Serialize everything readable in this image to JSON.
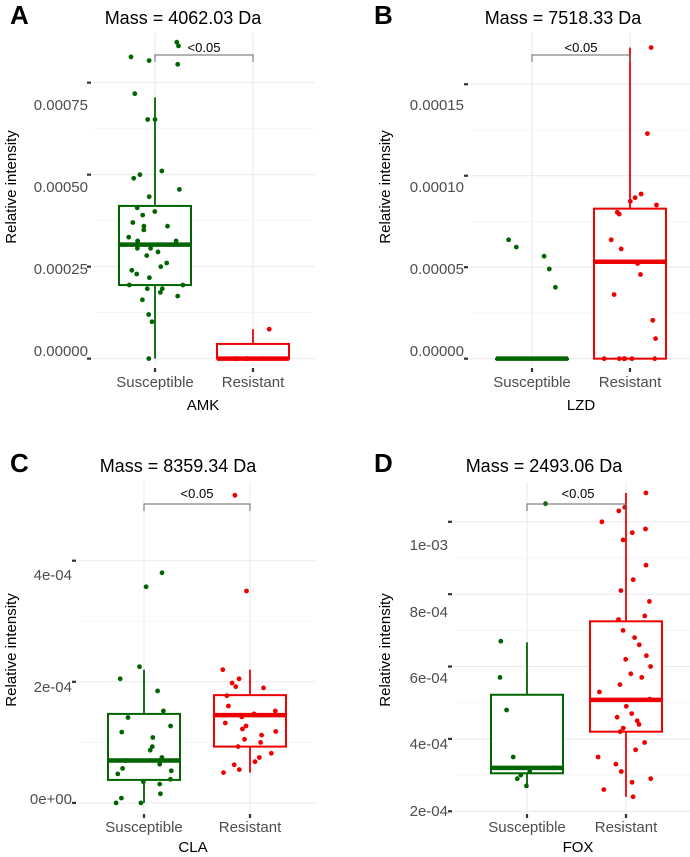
{
  "figure": {
    "ylabel": "Relative intensity"
  },
  "colors": {
    "susceptible": "#006400",
    "resistant": "#ee0000",
    "grid": "#ebebeb",
    "bracket": "#666666"
  },
  "chart_data": [
    {
      "type": "box",
      "panel": "A",
      "title": "Mass = 4062.03 Da",
      "xlabel": "AMK",
      "ylabel": "Relative intensity",
      "categories": [
        "Susceptible",
        "Resistant"
      ],
      "ylim": [
        -2e-05,
        0.000885
      ],
      "yticks": [
        0,
        0.00025,
        0.0005,
        0.00075
      ],
      "ytick_labels": [
        "0.00000",
        "0.00025",
        "0.00050",
        "0.00075"
      ],
      "significance": "<0.05",
      "boxes": [
        {
          "group": "Susceptible",
          "min": 0.0,
          "q1": 0.0002,
          "median": 0.00031,
          "q3": 0.000415,
          "max": 0.00071
        },
        {
          "group": "Resistant",
          "min": 0.0,
          "q1": 0.0,
          "median": 0.0,
          "q3": 4e-05,
          "max": 8e-05
        }
      ],
      "points": [
        {
          "group": "Susceptible",
          "values": [
            0.00086,
            0.00085,
            0.00082,
            0.00081,
            0.0008,
            0.00072,
            0.00065,
            0.00065,
            0.00051,
            0.0005,
            0.00049,
            0.00046,
            0.00044,
            0.00041,
            0.0004,
            0.00039,
            0.00037,
            0.00036,
            0.00036,
            0.00035,
            0.00033,
            0.00032,
            0.00032,
            0.00031,
            0.0003,
            0.0003,
            0.00029,
            0.00028,
            0.00026,
            0.00025,
            0.00024,
            0.00023,
            0.00022,
            0.0002,
            0.0002,
            0.00019,
            0.00019,
            0.00018,
            0.00017,
            0.00016,
            0.00012,
            0.0001,
            0.0
          ]
        },
        {
          "group": "Resistant",
          "values": [
            8e-05,
            0.0,
            0.0,
            0.0,
            0.0,
            0.0
          ]
        }
      ]
    },
    {
      "type": "box",
      "panel": "B",
      "title": "Mass = 7518.33 Da",
      "xlabel": "LZD",
      "ylabel": "Relative intensity",
      "categories": [
        "Susceptible",
        "Resistant"
      ],
      "ylim": [
        -4e-06,
        0.000178
      ],
      "yticks": [
        0,
        5e-05,
        0.0001,
        0.00015
      ],
      "ytick_labels": [
        "0.00000",
        "0.00005",
        "0.00010",
        "0.00015"
      ],
      "significance": "<0.05",
      "boxes": [
        {
          "group": "Susceptible",
          "min": 0.0,
          "q1": 0.0,
          "median": 0.0,
          "q3": 0.0,
          "max": 0.0
        },
        {
          "group": "Resistant",
          "min": 0.0,
          "q1": 0.0,
          "median": 5.3e-05,
          "q3": 8.2e-05,
          "max": 0.00017
        }
      ],
      "points": [
        {
          "group": "Susceptible",
          "values": [
            6.5e-05,
            6.1e-05,
            5.6e-05,
            4.9e-05,
            3.9e-05
          ]
        },
        {
          "group": "Resistant",
          "values": [
            0.00017,
            0.000123,
            9e-05,
            8.8e-05,
            8.6e-05,
            8.4e-05,
            8e-05,
            7.9e-05,
            6.5e-05,
            6e-05,
            5.2e-05,
            4.6e-05,
            3.5e-05,
            2.1e-05,
            1.1e-05,
            0.0,
            0.0,
            0.0,
            0.0,
            0.0,
            0.0
          ]
        }
      ]
    },
    {
      "type": "box",
      "panel": "C",
      "title": "Mass = 8359.34 Da",
      "xlabel": "CLA",
      "ylabel": "Relative intensity",
      "categories": [
        "Susceptible",
        "Resistant"
      ],
      "ylim": [
        -1.5e-05,
        0.00053
      ],
      "yticks": [
        0,
        0.0002,
        0.0004
      ],
      "ytick_labels": [
        "0e+00",
        "2e-04",
        "4e-04"
      ],
      "significance": "<0.05",
      "boxes": [
        {
          "group": "Susceptible",
          "min": 0.0,
          "q1": 3.8e-05,
          "median": 7e-05,
          "q3": 0.000147,
          "max": 0.00022
        },
        {
          "group": "Resistant",
          "min": 5e-05,
          "q1": 9.3e-05,
          "median": 0.000145,
          "q3": 0.000178,
          "max": 0.00022
        }
      ],
      "points": [
        {
          "group": "Susceptible",
          "values": [
            0.00038,
            0.000357,
            0.000225,
            0.000205,
            0.000185,
            0.000152,
            0.000141,
            0.000127,
            0.000117,
            0.000108,
            9.3e-05,
            8.7e-05,
            7.5e-05,
            7e-05,
            6.4e-05,
            5.7e-05,
            5.3e-05,
            4.8e-05,
            3.9e-05,
            3.5e-05,
            3.1e-05,
            1.5e-05,
            8e-06,
            0.0,
            0.0
          ]
        },
        {
          "group": "Resistant",
          "values": [
            0.000508,
            0.00035,
            0.00022,
            0.000205,
            0.000198,
            0.000192,
            0.00019,
            0.000177,
            0.00016,
            0.000152,
            0.000147,
            0.000145,
            0.000142,
            0.000132,
            0.000127,
            0.000122,
            0.000118,
            0.000112,
            0.000105,
            0.0001,
            9.3e-05,
            8.2e-05,
            7.5e-05,
            6.8e-05,
            6.3e-05,
            5.5e-05,
            5e-05
          ]
        }
      ]
    },
    {
      "type": "box",
      "panel": "D",
      "title": "Mass = 2493.06 Da",
      "xlabel": "FOX",
      "ylabel": "Relative intensity",
      "categories": [
        "Susceptible",
        "Resistant"
      ],
      "ylim": [
        0.000198,
        0.00111
      ],
      "yticks": [
        0.0002,
        0.0004,
        0.0006,
        0.0008,
        0.001
      ],
      "ytick_labels": [
        "2e-04",
        "4e-04",
        "6e-04",
        "8e-04",
        "1e-03"
      ],
      "significance": "<0.05",
      "boxes": [
        {
          "group": "Susceptible",
          "min": 0.000275,
          "q1": 0.000305,
          "median": 0.00032,
          "q3": 0.000522,
          "max": 0.000667
        },
        {
          "group": "Resistant",
          "min": 0.00024,
          "q1": 0.00042,
          "median": 0.000508,
          "q3": 0.000725,
          "max": 0.00108
        }
      ],
      "points": [
        {
          "group": "Susceptible",
          "values": [
            0.00105,
            0.00067,
            0.00057,
            0.00048,
            0.00035,
            0.00032,
            0.00031,
            0.0003,
            0.00029,
            0.00027
          ]
        },
        {
          "group": "Resistant",
          "values": [
            0.00108,
            0.00104,
            0.00103,
            0.001,
            0.00098,
            0.00097,
            0.00095,
            0.00088,
            0.00084,
            0.00081,
            0.00078,
            0.00074,
            0.00073,
            0.0007,
            0.00068,
            0.00066,
            0.00063,
            0.00062,
            0.0006,
            0.00058,
            0.00057,
            0.00055,
            0.00053,
            0.00051,
            0.00049,
            0.00047,
            0.00046,
            0.00045,
            0.00044,
            0.00043,
            0.00042,
            0.00039,
            0.00037,
            0.00035,
            0.00033,
            0.00031,
            0.00029,
            0.00028,
            0.00026,
            0.00024
          ]
        }
      ]
    }
  ]
}
